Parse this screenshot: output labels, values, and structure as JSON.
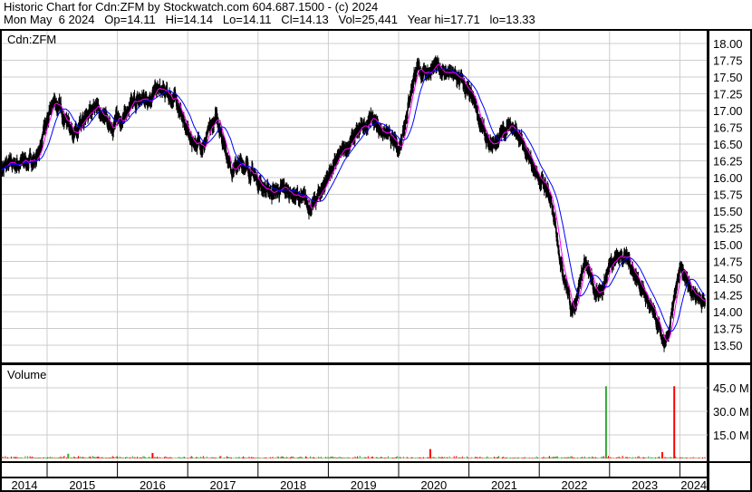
{
  "header": {
    "line1": "Historic Chart for Cdn:ZFM by Stockwatch.com 604.687.1500 - (c) 2024",
    "line2": "Mon May  6 2024   Op=14.11   Hi=14.14   Lo=14.11   Cl=14.13   Vol=25,441   Year hi=17.71   lo=13.33"
  },
  "chart_data": [
    {
      "type": "line",
      "title": "Cdn:ZFM",
      "ylim": [
        13.25,
        18.1
      ],
      "grid": true,
      "yticks": [
        "13.50",
        "13.75",
        "14.00",
        "14.25",
        "14.50",
        "14.75",
        "15.00",
        "15.25",
        "15.50",
        "15.75",
        "16.00",
        "16.25",
        "16.50",
        "16.75",
        "17.00",
        "17.25",
        "17.50",
        "17.75",
        "18.00"
      ],
      "xticks": [
        "2014",
        "2015",
        "2016",
        "2017",
        "2018",
        "2019",
        "2020",
        "2021",
        "2022",
        "2023",
        "2024"
      ],
      "price": {
        "x": [
          2014.36,
          2014.85,
          2015.1,
          2015.43,
          2015.68,
          2015.88,
          2016.26,
          2016.58,
          2016.84,
          2017.04,
          2017.23,
          2017.42,
          2017.62,
          2017.81,
          2018.13,
          2018.45,
          2018.78,
          2019.03,
          2019.29,
          2019.61,
          2020.0,
          2020.23,
          2020.58,
          2020.9,
          2021.1,
          2021.29,
          2021.61,
          2021.87,
          2022.13,
          2022.32,
          2022.47,
          2022.64,
          2022.84,
          2023.03,
          2023.22,
          2023.48,
          2023.8,
          2024.0,
          2024.19,
          2024.36
        ],
        "y": [
          16.15,
          16.28,
          17.15,
          16.62,
          17.1,
          16.75,
          17.1,
          17.3,
          17.15,
          16.55,
          16.5,
          16.9,
          16.15,
          16.2,
          15.8,
          15.8,
          15.55,
          16.1,
          16.5,
          16.9,
          16.42,
          17.57,
          17.63,
          17.43,
          17.03,
          16.42,
          16.82,
          16.21,
          15.8,
          14.73,
          13.99,
          14.73,
          14.19,
          14.8,
          14.86,
          14.32,
          13.45,
          14.6,
          14.32,
          14.13
        ]
      },
      "colors": {
        "price": "#000000",
        "short_ma": "#ff00ff",
        "long_ma": "#0000ff"
      }
    },
    {
      "type": "bar",
      "title": "Volume",
      "yticks": [
        "15.0 M",
        "30.0 M",
        "45.0 M"
      ],
      "ylim": [
        0,
        50
      ],
      "unit": "M",
      "spikes": [
        {
          "x": 2022.95,
          "value": 46,
          "color": "#33aa33"
        },
        {
          "x": 2023.92,
          "value": 46,
          "color": "#ff0000"
        },
        {
          "x": 2020.45,
          "value": 6,
          "color": "#ff0000"
        },
        {
          "x": 2023.75,
          "value": 4,
          "color": "#ff0000"
        },
        {
          "x": 2016.5,
          "value": 3.5,
          "color": "#ff0000"
        },
        {
          "x": 2015.3,
          "value": 3,
          "color": "#33aa33"
        }
      ],
      "colors": {
        "up": "#33aa33",
        "down": "#ff0000"
      }
    }
  ]
}
